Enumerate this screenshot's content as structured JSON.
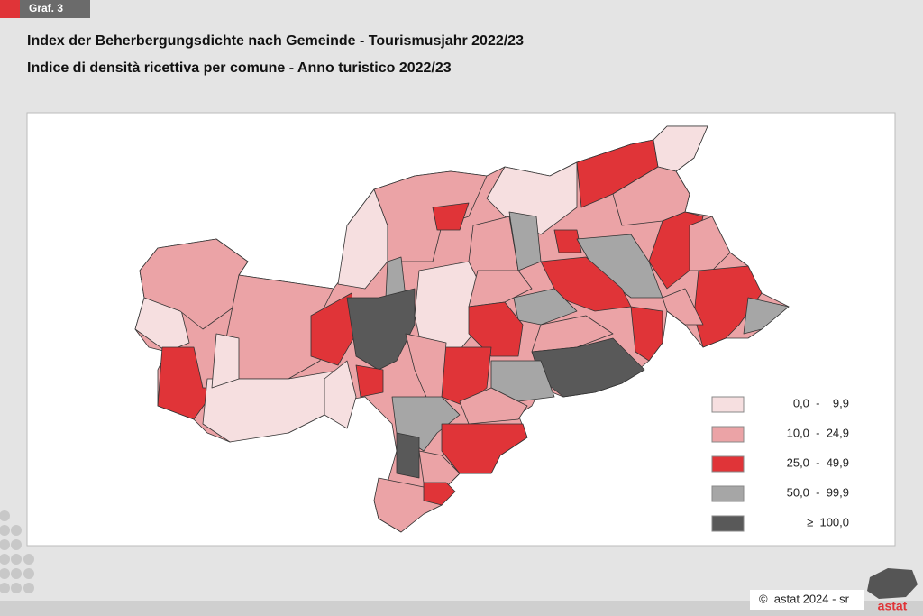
{
  "header": {
    "tag": "Graf. 3",
    "title_de": "Index der Beherbergungsdichte nach Gemeinde - Tourismusjahr 2022/23",
    "title_it": "Indice di densità ricettiva per comune - Anno turistico 2022/23"
  },
  "legend": [
    {
      "label": "0,0  -    9,9",
      "color": "#f6dfe0"
    },
    {
      "label": "10,0  -  24,9",
      "color": "#eba3a6"
    },
    {
      "label": "25,0  -  49,9",
      "color": "#e03438"
    },
    {
      "label": "50,0  -  99,9",
      "color": "#a6a6a6"
    },
    {
      "label": "≥  100,0",
      "color": "#595959"
    }
  ],
  "footer": {
    "copyright": "©  astat 2024 - sr",
    "logo": "astat"
  }
}
